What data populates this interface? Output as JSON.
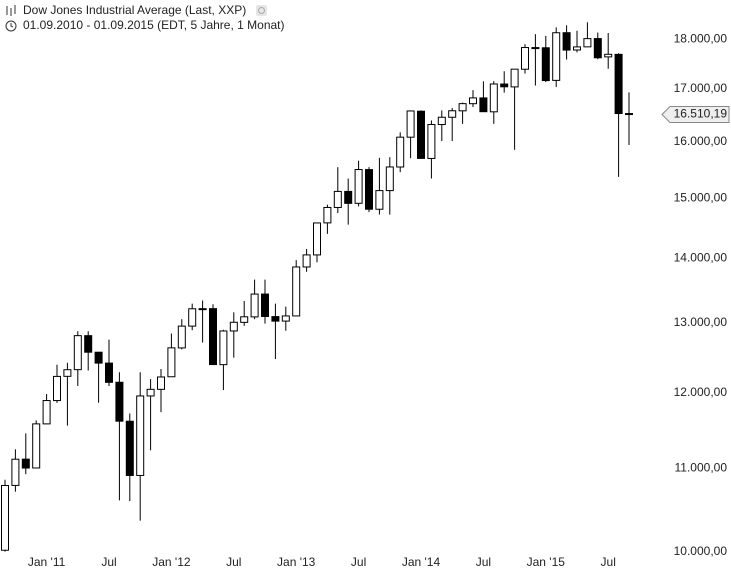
{
  "chart_data": {
    "type": "candlestick",
    "title": "Dow Jones Industrial Average (Last, XXP)",
    "subtitle": "01.09.2010 - 01.09.2015 (EDT, 5 Jahre, 1 Monat)",
    "log_scale": true,
    "grid": false,
    "up_color": "#ffffff",
    "down_color": "#000000",
    "categories": [
      null,
      null,
      null,
      null,
      "Jan '11",
      null,
      null,
      null,
      null,
      null,
      "Jul",
      null,
      null,
      null,
      null,
      null,
      "Jan '12",
      null,
      null,
      null,
      null,
      null,
      "Jul",
      null,
      null,
      null,
      null,
      null,
      "Jan '13",
      null,
      null,
      null,
      null,
      null,
      "Jul",
      null,
      null,
      null,
      null,
      null,
      "Jan '14",
      null,
      null,
      null,
      null,
      null,
      "Jul",
      null,
      null,
      null,
      null,
      null,
      "Jan '15",
      null,
      null,
      null,
      null,
      null,
      "Jul",
      null,
      null
    ],
    "open": [
      10016,
      10789,
      11119,
      11007,
      11578,
      11892,
      12227,
      12321,
      12811,
      12570,
      12414,
      12144,
      11613,
      10913,
      11955,
      12046,
      12221,
      12632,
      12952,
      13212,
      13214,
      12392,
      12880,
      13008,
      13090,
      13437,
      13094,
      13027,
      13104,
      13861,
      14054,
      14580,
      14840,
      15116,
      14911,
      15499,
      14810,
      15130,
      15545,
      16086,
      16572,
      15698,
      16321,
      16458,
      16580,
      16716,
      16827,
      16561,
      17097,
      17041,
      17390,
      17827,
      17823,
      17169,
      18134,
      17778,
      17842,
      18012,
      17638,
      17689,
      16528
    ],
    "high": [
      10860,
      11245,
      11452,
      11625,
      11981,
      12391,
      12419,
      12876,
      12876,
      12571,
      12753,
      12284,
      11717,
      12284,
      12188,
      12330,
      12842,
      13055,
      13290,
      13338,
      13280,
      12898,
      13159,
      13330,
      13661,
      13661,
      13290,
      13245,
      13970,
      14149,
      14585,
      14888,
      15542,
      15340,
      15658,
      15542,
      15710,
      15721,
      16175,
      16588,
      16589,
      16398,
      16588,
      16632,
      16736,
      16978,
      17151,
      17154,
      17350,
      17395,
      17895,
      18103,
      18068,
      18244,
      18289,
      18175,
      18351,
      18137,
      18128,
      17712,
      16934
    ],
    "low": [
      10000,
      10712,
      10929,
      11004,
      11573,
      11860,
      11555,
      12093,
      12309,
      11862,
      12093,
      10605,
      10597,
      10362,
      11232,
      11735,
      12221,
      12611,
      12891,
      12710,
      12391,
      12036,
      12492,
      12956,
      13056,
      12989,
      12472,
      12883,
      13104,
      13784,
      13937,
      14398,
      14746,
      14551,
      14859,
      14760,
      14720,
      14719,
      15453,
      15703,
      15699,
      15341,
      16016,
      16015,
      16334,
      16653,
      16563,
      16334,
      16929,
      15855,
      17302,
      17068,
      17136,
      17038,
      17585,
      17729,
      17837,
      17591,
      17399,
      15370,
      15942
    ],
    "close": [
      10788,
      11118,
      11006,
      11578,
      11892,
      12226,
      12320,
      12811,
      12570,
      12414,
      12143,
      11614,
      10913,
      11955,
      12046,
      12218,
      12633,
      12952,
      13212,
      13214,
      12393,
      12880,
      13009,
      13091,
      13437,
      13096,
      13026,
      13104,
      13861,
      14054,
      14579,
      14840,
      15116,
      14910,
      15500,
      14810,
      15130,
      15546,
      16086,
      16577,
      15699,
      16322,
      16458,
      16581,
      16717,
      16827,
      16563,
      17098,
      17043,
      17391,
      17828,
      17823,
      17165,
      18133,
      17776,
      17841,
      18011,
      17620,
      17690,
      16528,
      16510.19
    ],
    "current_price": {
      "value": 16510.19,
      "label": "16.510,19"
    },
    "ylim": [
      9950,
      18400
    ],
    "yticks": [
      {
        "value": 10000,
        "label": "10.000,00"
      },
      {
        "value": 11000,
        "label": "11.000,00"
      },
      {
        "value": 12000,
        "label": "12.000,00"
      },
      {
        "value": 13000,
        "label": "13.000,00"
      },
      {
        "value": 14000,
        "label": "14.000,00"
      },
      {
        "value": 15000,
        "label": "15.000,00"
      },
      {
        "value": 16000,
        "label": "16.000,00"
      },
      {
        "value": 17000,
        "label": "17.000,00"
      },
      {
        "value": 18000,
        "label": "18.000,00"
      }
    ]
  }
}
